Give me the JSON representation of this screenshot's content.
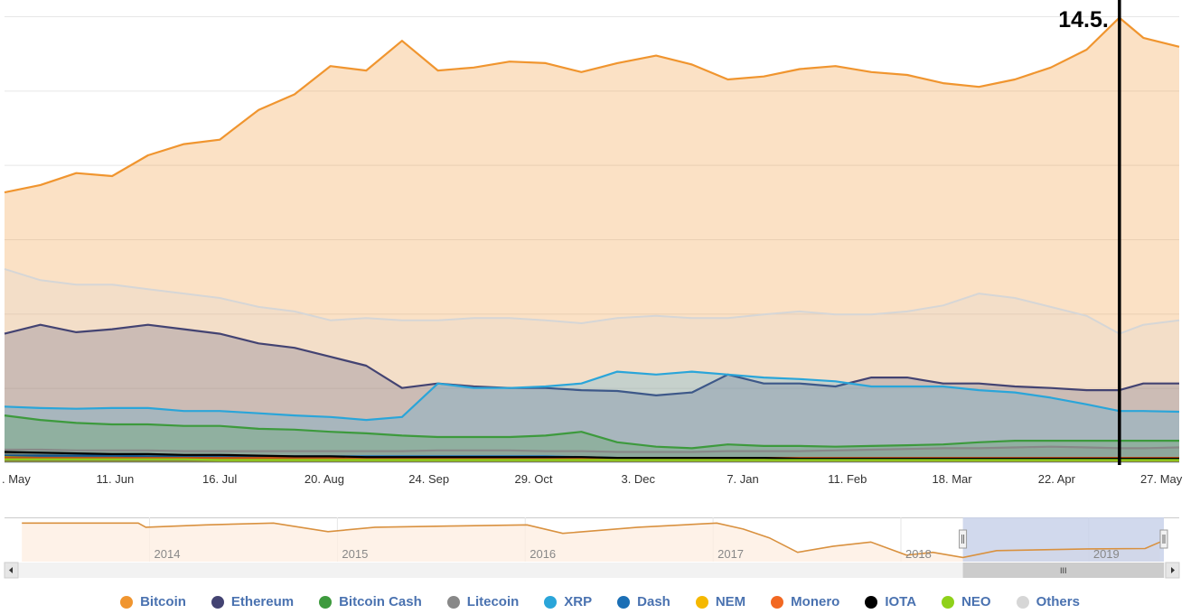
{
  "chart_data": [
    {
      "type": "area",
      "title": "",
      "xlabel": "",
      "ylabel": "",
      "ylim": [
        0,
        60
      ],
      "ygrid_step": 10,
      "grid": true,
      "x_unit": "days since start (approx. 2 May 2018)",
      "x": [
        0,
        12,
        24,
        36,
        48,
        60,
        72,
        85,
        97,
        109,
        121,
        133,
        145,
        157,
        169,
        181,
        193,
        205,
        218,
        230,
        242,
        254,
        266,
        278,
        290,
        302,
        314,
        326,
        338,
        350,
        362,
        373,
        381,
        393
      ],
      "xlim": [
        0,
        393
      ],
      "x_ticks": [
        {
          "day": 4,
          "label": ". May"
        },
        {
          "day": 37,
          "label": "11. Jun"
        },
        {
          "day": 72,
          "label": "16. Jul"
        },
        {
          "day": 107,
          "label": "20. Aug"
        },
        {
          "day": 142,
          "label": "24. Sep"
        },
        {
          "day": 177,
          "label": "29. Oct"
        },
        {
          "day": 212,
          "label": "3. Dec"
        },
        {
          "day": 247,
          "label": "7. Jan"
        },
        {
          "day": 282,
          "label": "11. Feb"
        },
        {
          "day": 317,
          "label": "18. Mar"
        },
        {
          "day": 352,
          "label": "22. Apr"
        },
        {
          "day": 387,
          "label": "27. May"
        }
      ],
      "annotation": {
        "day": 373,
        "label": "14.5."
      },
      "series": [
        {
          "name": "Bitcoin",
          "color": "#f0952f",
          "values": [
            36.3,
            37.3,
            38.9,
            38.5,
            41.3,
            42.8,
            43.4,
            47.4,
            49.5,
            53.3,
            52.7,
            56.7,
            52.7,
            53.1,
            53.9,
            53.7,
            52.5,
            53.7,
            54.7,
            53.5,
            51.5,
            51.9,
            52.9,
            53.3,
            52.5,
            52.1,
            51.0,
            50.5,
            51.5,
            53.1,
            55.5,
            59.8,
            57.1,
            55.9
          ]
        },
        {
          "name": "Ethereum",
          "color": "#434372",
          "values": [
            17.3,
            18.5,
            17.5,
            17.9,
            18.5,
            17.9,
            17.3,
            16.0,
            15.4,
            14.2,
            13.0,
            10.0,
            10.6,
            10.2,
            10.0,
            10.0,
            9.7,
            9.6,
            9.0,
            9.4,
            11.8,
            10.6,
            10.6,
            10.2,
            11.4,
            11.4,
            10.6,
            10.6,
            10.2,
            10.0,
            9.7,
            9.7,
            10.6,
            10.6
          ]
        },
        {
          "name": "Bitcoin Cash",
          "color": "#3d9a3d",
          "values": [
            6.3,
            5.7,
            5.3,
            5.1,
            5.1,
            4.9,
            4.9,
            4.5,
            4.4,
            4.1,
            3.9,
            3.6,
            3.4,
            3.4,
            3.4,
            3.6,
            4.1,
            2.7,
            2.1,
            1.9,
            2.4,
            2.2,
            2.2,
            2.1,
            2.2,
            2.3,
            2.4,
            2.7,
            2.9,
            2.9,
            2.9,
            2.9,
            2.9,
            2.9
          ]
        },
        {
          "name": "Litecoin",
          "color": "#888888",
          "values": [
            1.7,
            1.7,
            1.6,
            1.6,
            1.6,
            1.5,
            1.5,
            1.5,
            1.5,
            1.5,
            1.5,
            1.5,
            1.6,
            1.6,
            1.6,
            1.5,
            1.5,
            1.4,
            1.4,
            1.4,
            1.5,
            1.5,
            1.5,
            1.6,
            1.7,
            1.8,
            1.9,
            1.9,
            2.0,
            2.1,
            2.0,
            1.9,
            1.9,
            2.0
          ]
        },
        {
          "name": "XRP",
          "color": "#2aa5d9",
          "values": [
            7.5,
            7.3,
            7.2,
            7.3,
            7.3,
            6.9,
            6.9,
            6.6,
            6.3,
            6.1,
            5.7,
            6.1,
            10.6,
            10.0,
            10.0,
            10.2,
            10.6,
            12.2,
            11.8,
            12.2,
            11.8,
            11.4,
            11.2,
            10.9,
            10.2,
            10.2,
            10.2,
            9.7,
            9.4,
            8.7,
            7.8,
            6.9,
            6.9,
            6.8
          ]
        },
        {
          "name": "Dash",
          "color": "#1b6fb5",
          "values": [
            0.9,
            0.9,
            0.9,
            0.9,
            0.8,
            0.8,
            0.8,
            0.8,
            0.8,
            0.8,
            0.8,
            0.8,
            0.8,
            0.8,
            0.8,
            0.8,
            0.7,
            0.6,
            0.6,
            0.6,
            0.6,
            0.6,
            0.6,
            0.6,
            0.6,
            0.6,
            0.6,
            0.6,
            0.6,
            0.6,
            0.6,
            0.6,
            0.6,
            0.6
          ]
        },
        {
          "name": "NEM",
          "color": "#f5b800",
          "values": [
            0.7,
            0.6,
            0.6,
            0.6,
            0.6,
            0.5,
            0.5,
            0.5,
            0.5,
            0.5,
            0.5,
            0.5,
            0.5,
            0.5,
            0.5,
            0.5,
            0.4,
            0.4,
            0.4,
            0.4,
            0.4,
            0.4,
            0.4,
            0.4,
            0.3,
            0.3,
            0.3,
            0.3,
            0.3,
            0.3,
            0.3,
            0.3,
            0.3,
            0.3
          ]
        },
        {
          "name": "Monero",
          "color": "#f26822",
          "values": [
            0.6,
            0.6,
            0.6,
            0.6,
            0.6,
            0.6,
            0.6,
            0.6,
            0.6,
            0.6,
            0.6,
            0.6,
            0.6,
            0.6,
            0.6,
            0.6,
            0.6,
            0.6,
            0.6,
            0.6,
            0.6,
            0.6,
            0.6,
            0.6,
            0.6,
            0.6,
            0.6,
            0.6,
            0.6,
            0.6,
            0.6,
            0.6,
            0.6,
            0.6
          ]
        },
        {
          "name": "IOTA",
          "color": "#000000",
          "values": [
            1.4,
            1.3,
            1.2,
            1.1,
            1.1,
            1.0,
            1.0,
            0.9,
            0.8,
            0.8,
            0.7,
            0.7,
            0.7,
            0.7,
            0.7,
            0.7,
            0.7,
            0.6,
            0.6,
            0.6,
            0.6,
            0.6,
            0.5,
            0.5,
            0.5,
            0.5,
            0.5,
            0.5,
            0.5,
            0.5,
            0.5,
            0.5,
            0.5,
            0.5
          ]
        },
        {
          "name": "NEO",
          "color": "#8fd11a",
          "values": [
            0.4,
            0.4,
            0.4,
            0.4,
            0.4,
            0.4,
            0.3,
            0.3,
            0.3,
            0.3,
            0.3,
            0.3,
            0.3,
            0.3,
            0.3,
            0.3,
            0.3,
            0.3,
            0.3,
            0.3,
            0.3,
            0.3,
            0.3,
            0.3,
            0.3,
            0.3,
            0.3,
            0.3,
            0.3,
            0.3,
            0.3,
            0.3,
            0.3,
            0.3
          ]
        },
        {
          "name": "Others",
          "color": "#d6d6d6",
          "values": [
            26.0,
            24.5,
            23.9,
            23.9,
            23.3,
            22.7,
            22.1,
            20.9,
            20.3,
            19.1,
            19.4,
            19.1,
            19.1,
            19.4,
            19.4,
            19.1,
            18.7,
            19.4,
            19.7,
            19.4,
            19.4,
            19.9,
            20.3,
            19.9,
            19.9,
            20.3,
            21.1,
            22.7,
            22.1,
            20.9,
            19.7,
            17.3,
            18.5,
            19.1
          ]
        }
      ],
      "draw_order": [
        "Bitcoin",
        "Others",
        "Ethereum",
        "XRP",
        "Bitcoin Cash",
        "Litecoin",
        "Dash",
        "NEM",
        "Monero",
        "IOTA",
        "NEO"
      ]
    },
    {
      "type": "area",
      "role": "navigator",
      "series_name": "Bitcoin",
      "color": "#f0952f",
      "ylim": [
        30,
        100
      ],
      "xlim": [
        2013.3,
        2019.4
      ],
      "x_ticks": [
        {
          "year": 2014,
          "label": "2014"
        },
        {
          "year": 2015,
          "label": "2015"
        },
        {
          "year": 2016,
          "label": "2016"
        },
        {
          "year": 2017,
          "label": "2017"
        },
        {
          "year": 2018,
          "label": "2018"
        },
        {
          "year": 2019,
          "label": "2019"
        }
      ],
      "points": [
        [
          2013.32,
          95
        ],
        [
          2013.94,
          95
        ],
        [
          2013.98,
          88
        ],
        [
          2014.3,
          92
        ],
        [
          2014.66,
          95
        ],
        [
          2014.95,
          80.5
        ],
        [
          2015.2,
          88
        ],
        [
          2015.6,
          90
        ],
        [
          2016.01,
          92
        ],
        [
          2016.2,
          77.6
        ],
        [
          2016.6,
          88
        ],
        [
          2017.02,
          95
        ],
        [
          2017.16,
          85
        ],
        [
          2017.3,
          70
        ],
        [
          2017.45,
          45.7
        ],
        [
          2017.64,
          56
        ],
        [
          2017.84,
          63
        ],
        [
          2018.03,
          41
        ],
        [
          2018.17,
          45.7
        ],
        [
          2018.33,
          37
        ],
        [
          2018.51,
          48.6
        ],
        [
          2018.99,
          51.5
        ],
        [
          2019.3,
          52
        ],
        [
          2019.38,
          63
        ]
      ],
      "selected_range": [
        2018.33,
        2019.4
      ]
    }
  ],
  "legend": [
    "Bitcoin",
    "Ethereum",
    "Bitcoin Cash",
    "Litecoin",
    "XRP",
    "Dash",
    "NEM",
    "Monero",
    "IOTA",
    "NEO",
    "Others"
  ],
  "scrollbar": {
    "thumb_grip": "III"
  }
}
